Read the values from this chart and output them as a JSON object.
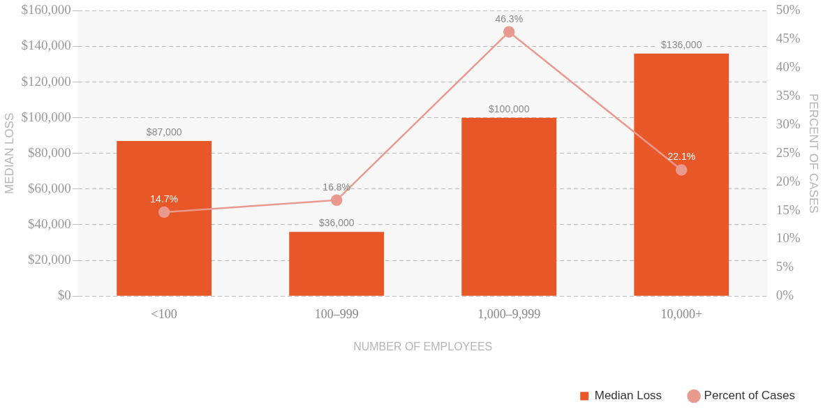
{
  "chart_data": {
    "type": "bar",
    "xlabel": "NUMBER OF EMPLOYEES",
    "ylabel": "MEDIAN LOSS",
    "y2label": "PERCENT OF CASES",
    "categories": [
      "<100",
      "100–999",
      "1,000–9,999",
      "10,000+"
    ],
    "series": [
      {
        "name": "Median Loss",
        "color": "#e85728",
        "values": [
          87000,
          36000,
          100000,
          136000
        ],
        "value_labels": [
          "$87,000",
          "$36,000",
          "$100,000",
          "$136,000"
        ]
      },
      {
        "name": "Percent of Cases",
        "type": "line",
        "axis": "y2",
        "color": "#e99a8f",
        "marker": "circle",
        "values": [
          14.7,
          16.8,
          46.3,
          22.1
        ],
        "value_labels": [
          "14.7%",
          "16.8%",
          "46.3%",
          "22.1%"
        ]
      }
    ],
    "ylim": [
      0,
      160000
    ],
    "yticks": [
      {
        "value": 0,
        "label": "$0"
      },
      {
        "value": 20000,
        "label": "$20,000"
      },
      {
        "value": 40000,
        "label": "$40,000"
      },
      {
        "value": 60000,
        "label": "$60,000"
      },
      {
        "value": 80000,
        "label": "$80,000"
      },
      {
        "value": 100000,
        "label": "$100,000"
      },
      {
        "value": 120000,
        "label": "$120,000"
      },
      {
        "value": 140000,
        "label": "$140,000"
      },
      {
        "value": 160000,
        "label": "$160,000"
      }
    ],
    "y2lim": [
      0,
      50
    ],
    "y2ticks": [
      {
        "value": 0,
        "label": "0%"
      },
      {
        "value": 5,
        "label": "5%"
      },
      {
        "value": 10,
        "label": "10%"
      },
      {
        "value": 15,
        "label": "15%"
      },
      {
        "value": 20,
        "label": "20%"
      },
      {
        "value": 25,
        "label": "25%"
      },
      {
        "value": 30,
        "label": "30%"
      },
      {
        "value": 35,
        "label": "35%"
      },
      {
        "value": 40,
        "label": "40%"
      },
      {
        "value": 45,
        "label": "45%"
      },
      {
        "value": 50,
        "label": "50%"
      }
    ],
    "grid": "y",
    "legend": "bottom right"
  }
}
